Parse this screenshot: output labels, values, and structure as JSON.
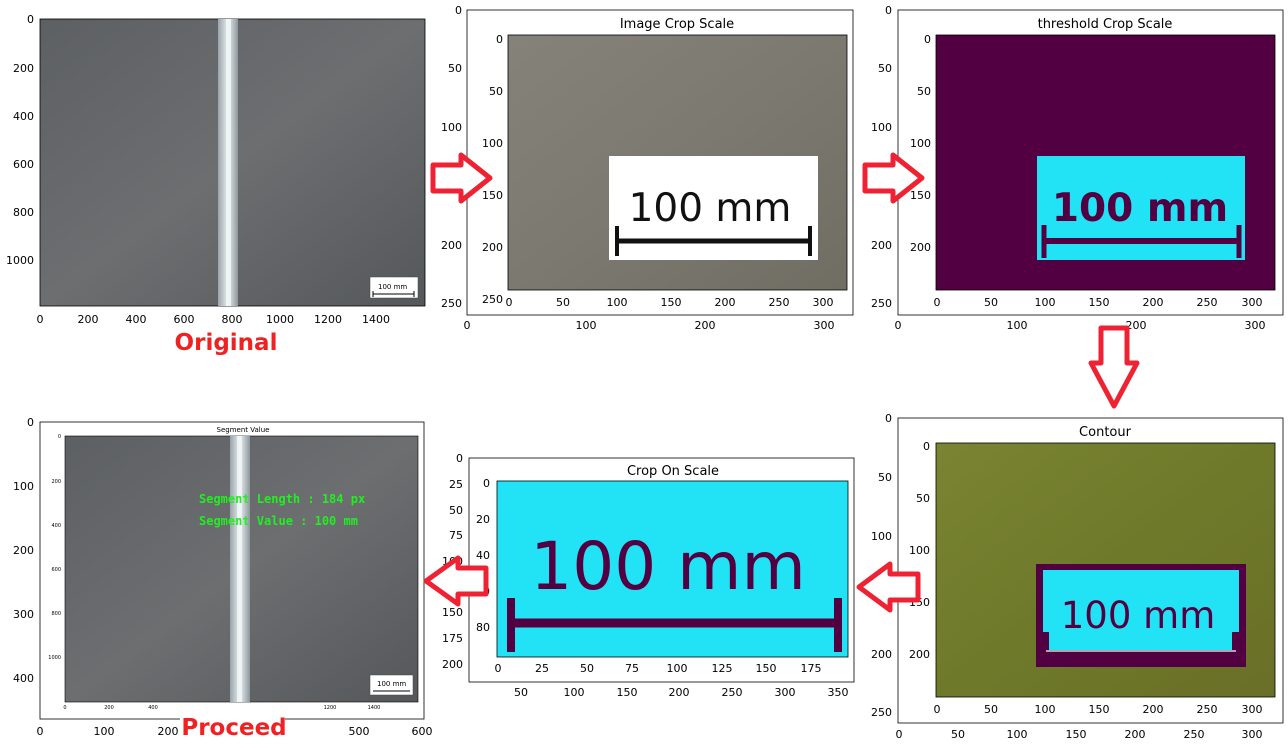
{
  "colors": {
    "arrow": "#ee2233",
    "caption": "#ee2222",
    "threshold_dark": "#520042",
    "threshold_light": "#22e3f5",
    "overlay_green": "#22ee22",
    "contour_bg": "#6e7a2a"
  },
  "panels": {
    "original": {
      "caption": "Original",
      "x_ticks": [
        "0",
        "200",
        "400",
        "600",
        "800",
        "1000",
        "1200",
        "1400"
      ],
      "y_ticks": [
        "0",
        "200",
        "400",
        "600",
        "800",
        "1000"
      ],
      "scale_text": "100 mm"
    },
    "image_crop": {
      "title": "Image Crop Scale",
      "x_ticks": [
        "0",
        "50",
        "100",
        "150",
        "200",
        "250",
        "300"
      ],
      "y_ticks": [
        "0",
        "50",
        "100",
        "150",
        "200",
        "250"
      ],
      "outer_x_ticks": [
        "0",
        "100",
        "200",
        "300"
      ],
      "outer_y_ticks": [
        "0",
        "50",
        "100",
        "150",
        "200",
        "250"
      ],
      "scale_text": "100 mm"
    },
    "threshold": {
      "title": "threshold Crop Scale",
      "x_ticks": [
        "0",
        "50",
        "100",
        "150",
        "200",
        "250",
        "300"
      ],
      "y_ticks": [
        "0",
        "50",
        "100",
        "150",
        "200"
      ],
      "outer_x_ticks": [
        "0",
        "100",
        "200",
        "300"
      ],
      "outer_y_ticks": [
        "0",
        "50",
        "100",
        "150",
        "200",
        "250"
      ],
      "scale_text": "100 mm"
    },
    "contour": {
      "title": "Contour",
      "x_ticks": [
        "0",
        "50",
        "100",
        "150",
        "200",
        "250",
        "300"
      ],
      "y_ticks": [
        "0",
        "50",
        "100",
        "150",
        "200"
      ],
      "outer_x_ticks": [
        "0",
        "50",
        "100",
        "150",
        "200",
        "250",
        "300"
      ],
      "outer_y_ticks": [
        "0",
        "50",
        "100",
        "150",
        "200",
        "250"
      ],
      "scale_text": "100 mm"
    },
    "crop_on_scale": {
      "title": "Crop On Scale",
      "x_ticks": [
        "0",
        "25",
        "50",
        "75",
        "100",
        "125",
        "150",
        "175"
      ],
      "y_ticks": [
        "0",
        "20",
        "40",
        "60",
        "80"
      ],
      "outer_x_ticks": [
        "50",
        "100",
        "150",
        "200",
        "250",
        "300",
        "350"
      ],
      "outer_y_ticks": [
        "0",
        "25",
        "50",
        "75",
        "100",
        "125",
        "150",
        "175",
        "200"
      ],
      "scale_text": "100 mm"
    },
    "proceed": {
      "title": "Segment Value",
      "caption": "Proceed",
      "overlay_line1": "Segment Length : 184 px",
      "overlay_line2": "Segment Value : 100 mm",
      "inner_x_ticks": [
        "0",
        "200",
        "400",
        "1200",
        "1400"
      ],
      "inner_y_ticks": [
        "0",
        "200",
        "400",
        "600",
        "800",
        "1000"
      ],
      "outer_x_ticks": [
        "0",
        "100",
        "200",
        "500",
        "600"
      ],
      "outer_y_ticks": [
        "0",
        "100",
        "200",
        "300",
        "400"
      ],
      "scale_text": "100 mm"
    }
  }
}
